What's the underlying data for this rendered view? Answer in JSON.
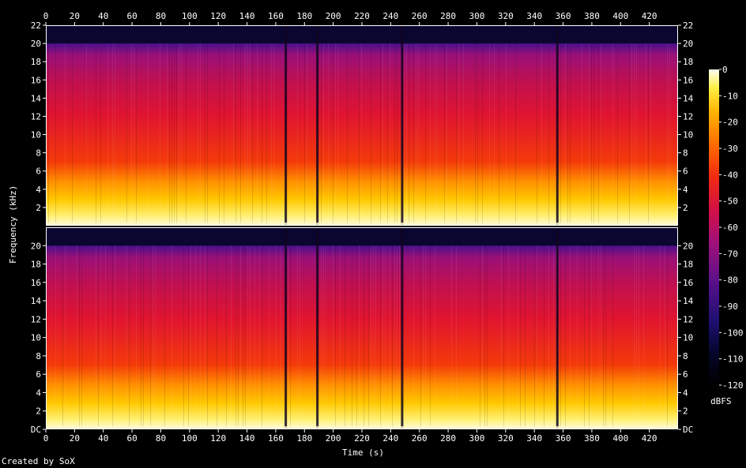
{
  "credit": "Created by SoX",
  "chart_data": {
    "type": "heatmap",
    "title": "",
    "xlabel": "Time (s)",
    "ylabel": "Frequency (kHz)",
    "colorbar_label": "dBFS",
    "xlim": [
      0,
      440
    ],
    "ylim": [
      0,
      22
    ],
    "x_ticks": [
      0,
      20,
      40,
      60,
      80,
      100,
      120,
      140,
      160,
      180,
      200,
      220,
      240,
      260,
      280,
      300,
      320,
      340,
      360,
      380,
      400,
      420
    ],
    "y_ticks": [
      2,
      4,
      6,
      8,
      10,
      12,
      14,
      16,
      18,
      20,
      22
    ],
    "top_channel_y_tick_labels": [
      "2",
      "4",
      "6",
      "8",
      "10",
      "12",
      "14",
      "16",
      "18",
      "20",
      "22"
    ],
    "bottom_channel_y_tick_labels": [
      "DC",
      "2",
      "4",
      "6",
      "8",
      "10",
      "12",
      "14",
      "16",
      "18",
      "20"
    ],
    "colorbar_ticks": [
      0,
      -10,
      -20,
      -30,
      -40,
      -50,
      -60,
      -70,
      -80,
      -90,
      -100,
      -110,
      -120
    ],
    "colorbar_range": [
      -120,
      0
    ],
    "channels": 2,
    "lowpass_cutoff_khz": 20,
    "quiet_gaps_s": [
      167,
      189,
      248,
      356
    ],
    "colors": {
      "background": "#000000",
      "text": "#ffffff"
    }
  }
}
